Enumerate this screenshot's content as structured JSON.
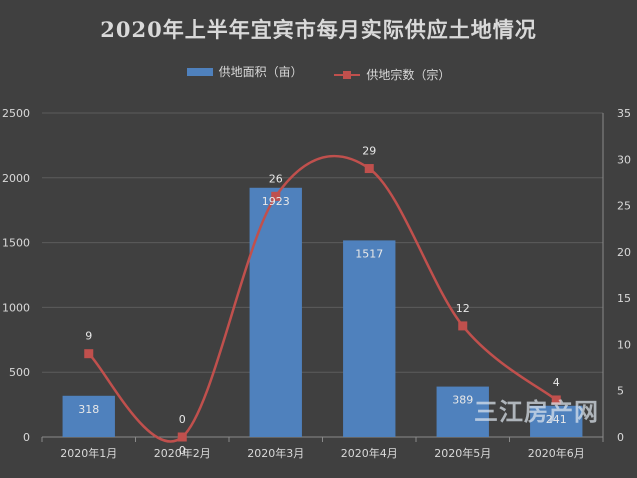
{
  "chart_data": {
    "type": "bar",
    "title": "2020年上半年宜宾市每月实际供应土地情况",
    "categories": [
      "2020年1月",
      "2020年2月",
      "2020年3月",
      "2020年4月",
      "2020年5月",
      "2020年6月"
    ],
    "series": [
      {
        "name": "供地面积（亩）",
        "type": "bar",
        "axis": "left",
        "color": "#4f81bd",
        "values": [
          318,
          0,
          1923,
          1517,
          389,
          241
        ]
      },
      {
        "name": "供地宗数（宗）",
        "type": "line",
        "axis": "right",
        "color": "#c0504d",
        "values": [
          9,
          0,
          26,
          29,
          12,
          4
        ]
      }
    ],
    "ylim_left": [
      0,
      2500
    ],
    "yticks_left": [
      "0",
      "500",
      "1000",
      "1500",
      "2000",
      "2500"
    ],
    "ylim_right": [
      0,
      35
    ],
    "yticks_right": [
      "0",
      "5",
      "10",
      "15",
      "20",
      "25",
      "30",
      "35"
    ],
    "legend_position": "top",
    "grid": true
  },
  "watermark": "三江房产网"
}
